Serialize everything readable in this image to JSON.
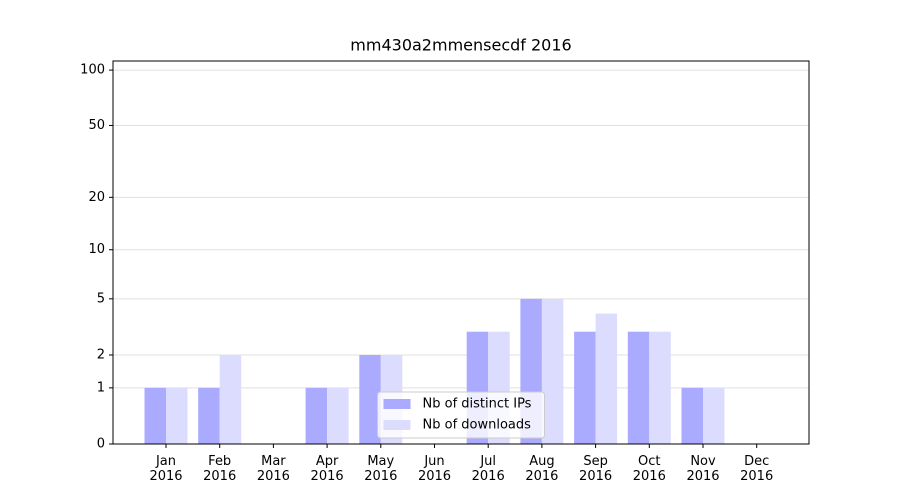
{
  "chart_data": {
    "type": "bar",
    "title": "mm430a2mmensecdf 2016",
    "categories": [
      "Jan\n2016",
      "Feb\n2016",
      "Mar\n2016",
      "Apr\n2016",
      "May\n2016",
      "Jun\n2016",
      "Jul\n2016",
      "Aug\n2016",
      "Sep\n2016",
      "Oct\n2016",
      "Nov\n2016",
      "Dec\n2016"
    ],
    "series": [
      {
        "name": "Nb of distinct IPs",
        "color": "#aaaaff",
        "values": [
          1,
          1,
          0,
          1,
          2,
          0,
          3,
          5,
          3,
          3,
          1,
          0
        ]
      },
      {
        "name": "Nb of downloads",
        "color": "#dcdcff",
        "values": [
          1,
          2,
          0,
          1,
          2,
          0,
          3,
          5,
          4,
          3,
          1,
          0
        ]
      }
    ],
    "yscale": "log1p",
    "ylim": [
      0,
      112
    ],
    "yticks": [
      0,
      1,
      2,
      5,
      10,
      20,
      50,
      100
    ],
    "grid": true,
    "legend": "lower center"
  }
}
